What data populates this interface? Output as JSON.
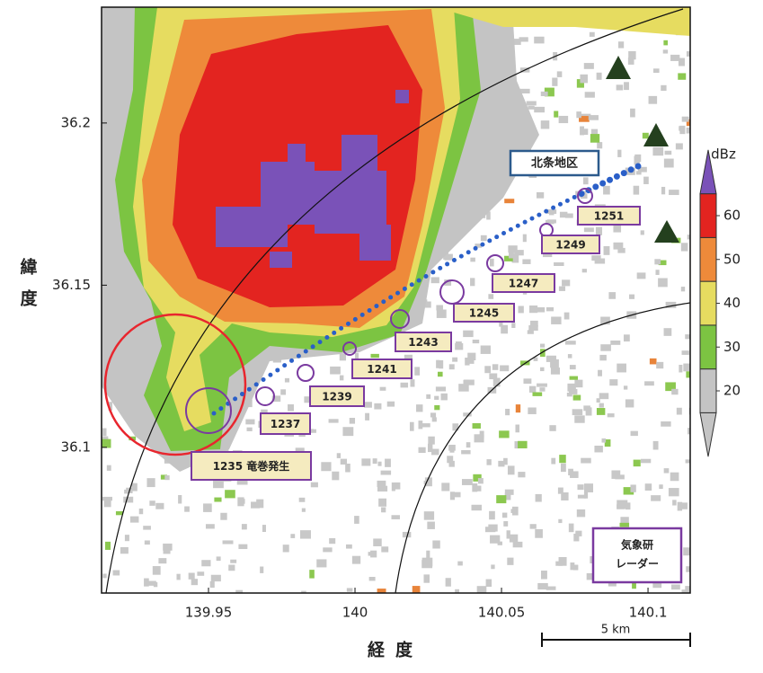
{
  "map": {
    "xlim": [
      139.9135,
      140.1144
    ],
    "ylim": [
      36.0551,
      36.2357
    ],
    "xticks": [
      139.95,
      140,
      140.05,
      140.1
    ],
    "yticks": [
      36.1,
      36.15,
      36.2
    ],
    "xlabel": "経度",
    "ylabel": "緯度"
  },
  "colorbar": {
    "unit": "dBz",
    "ticks": [
      20,
      30,
      40,
      50,
      60
    ]
  },
  "track": {
    "labels": [
      "1235 竜巻発生",
      "1237",
      "1239",
      "1241",
      "1243",
      "1245",
      "1247",
      "1249",
      "1251"
    ]
  },
  "place": "北条地区",
  "radar": {
    "lines": [
      "気象研",
      "レーダー"
    ]
  },
  "scale": "5 km"
}
